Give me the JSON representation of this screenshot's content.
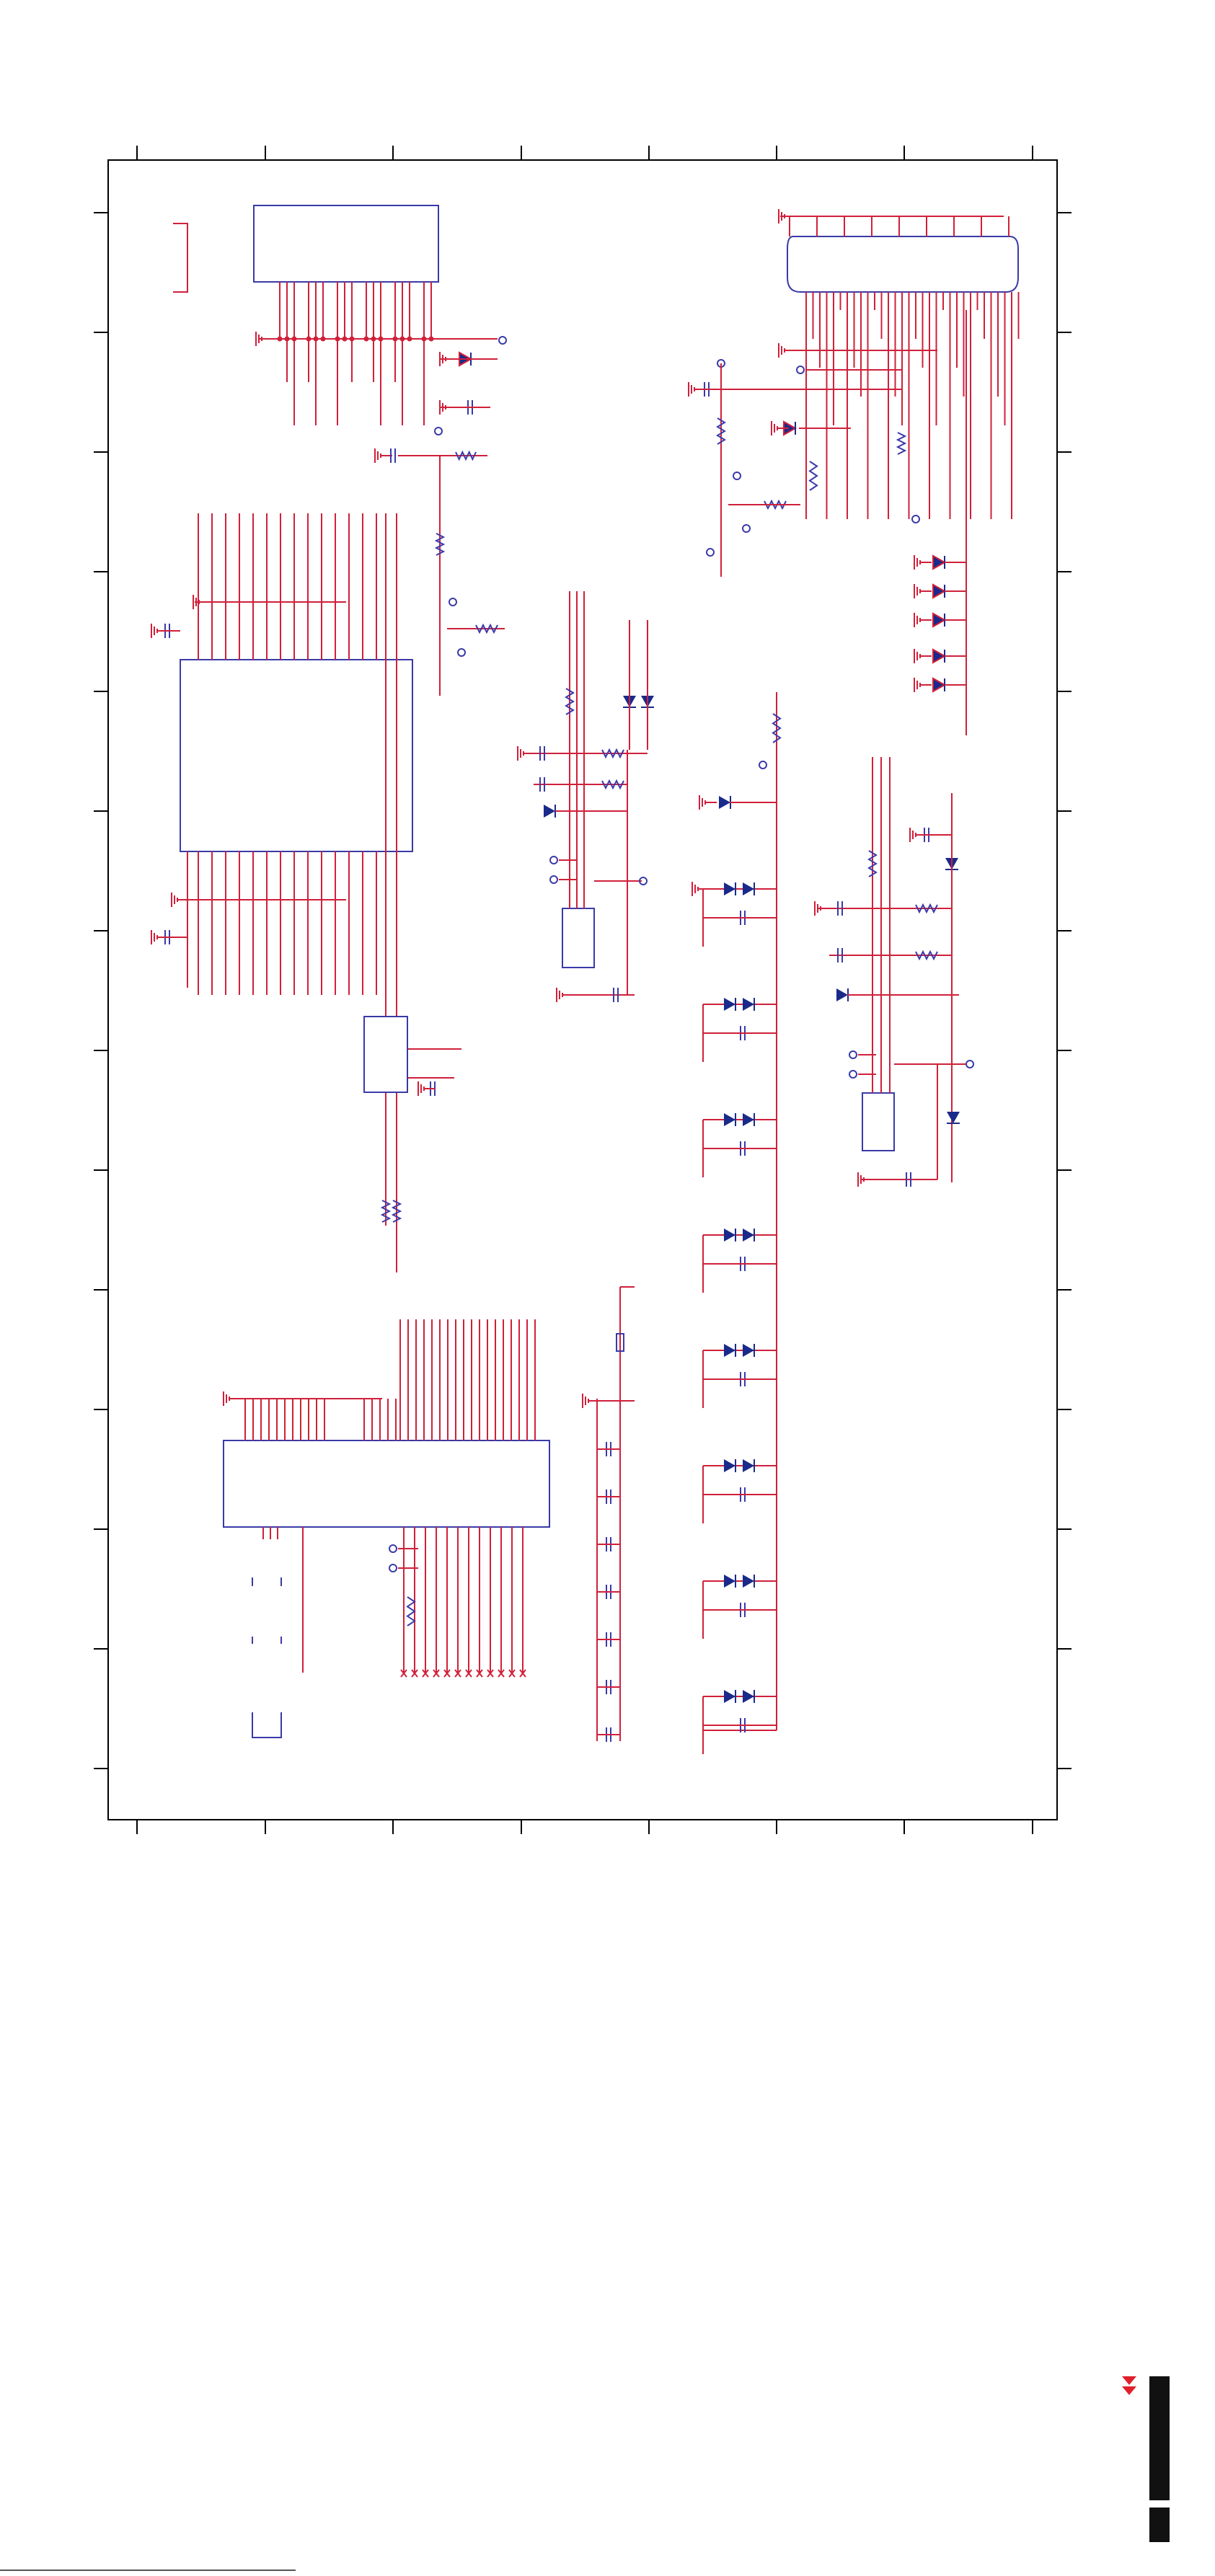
{
  "document": {
    "type": "rotated schematic sheet",
    "colors": {
      "wire": "#d0203a",
      "component": "#3a3aa8",
      "diode": "#1a2a8a",
      "frame": "#000000",
      "marker": "#e0202a"
    },
    "icons": [
      "ground-icon",
      "diode-icon",
      "capacitor-icon",
      "resistor-icon",
      "test-point-icon",
      "transistor-icon"
    ]
  }
}
